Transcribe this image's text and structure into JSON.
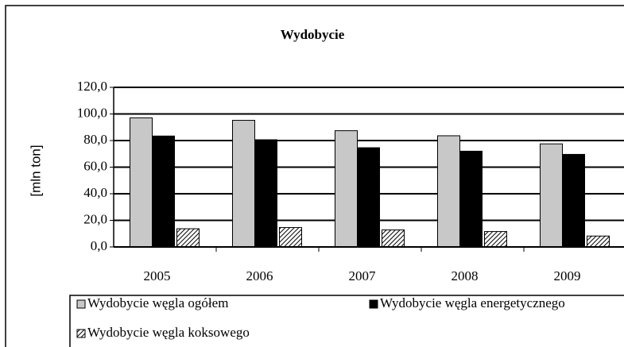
{
  "chart_data": {
    "type": "bar",
    "title": "Wydobycie",
    "ylabel": "[mln ton]",
    "categories": [
      "2005",
      "2006",
      "2007",
      "2008",
      "2009"
    ],
    "series": [
      {
        "name": "Wydobycie węgla ogółem",
        "color": "#c8c8c8",
        "values": [
          97.1,
          95.2,
          87.4,
          83.6,
          77.5
        ]
      },
      {
        "name": "Wydobycie węgla energetycznego",
        "color": "#000000",
        "values": [
          83.4,
          80.6,
          74.6,
          72.0,
          69.6
        ]
      },
      {
        "name": "Wydobycie węgla koksowego",
        "color": "#000000",
        "fill_pattern": "diagonal-hatch",
        "values": [
          13.7,
          14.6,
          12.8,
          11.6,
          8.2
        ]
      }
    ],
    "ylim": [
      0,
      120
    ],
    "yticks": [
      {
        "value": 0,
        "label": "0,0"
      },
      {
        "value": 20,
        "label": "20,0"
      },
      {
        "value": 40,
        "label": "40,0"
      },
      {
        "value": 60,
        "label": "60,0"
      },
      {
        "value": 80,
        "label": "80,0"
      },
      {
        "value": 100,
        "label": "100,0"
      },
      {
        "value": 120,
        "label": "120,0"
      }
    ],
    "grid": true,
    "legend": "bottom"
  }
}
